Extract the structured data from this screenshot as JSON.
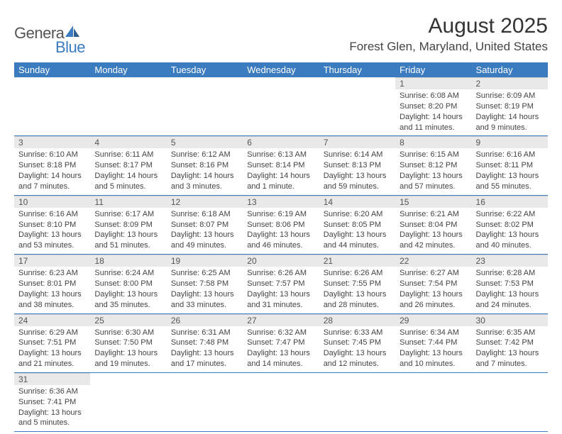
{
  "brand": {
    "part1": "Genera",
    "part2": "Blue"
  },
  "title": "August 2025",
  "location": "Forest Glen, Maryland, United States",
  "colors": {
    "header_bg": "#3b7bbf",
    "header_fg": "#ffffff",
    "daynum_bg": "#e9e9e9",
    "row_border": "#3b7bbf",
    "text": "#3a3a3a"
  },
  "fonts": {
    "title_pt": 30,
    "location_pt": 17,
    "dayhead_pt": 13,
    "daynum_pt": 12,
    "daytext_pt": 11
  },
  "day_names": [
    "Sunday",
    "Monday",
    "Tuesday",
    "Wednesday",
    "Thursday",
    "Friday",
    "Saturday"
  ],
  "weeks": [
    [
      null,
      null,
      null,
      null,
      null,
      {
        "n": "1",
        "sunrise": "6:08 AM",
        "sunset": "8:20 PM",
        "daylight": "14 hours and 11 minutes."
      },
      {
        "n": "2",
        "sunrise": "6:09 AM",
        "sunset": "8:19 PM",
        "daylight": "14 hours and 9 minutes."
      }
    ],
    [
      {
        "n": "3",
        "sunrise": "6:10 AM",
        "sunset": "8:18 PM",
        "daylight": "14 hours and 7 minutes."
      },
      {
        "n": "4",
        "sunrise": "6:11 AM",
        "sunset": "8:17 PM",
        "daylight": "14 hours and 5 minutes."
      },
      {
        "n": "5",
        "sunrise": "6:12 AM",
        "sunset": "8:16 PM",
        "daylight": "14 hours and 3 minutes."
      },
      {
        "n": "6",
        "sunrise": "6:13 AM",
        "sunset": "8:14 PM",
        "daylight": "14 hours and 1 minute."
      },
      {
        "n": "7",
        "sunrise": "6:14 AM",
        "sunset": "8:13 PM",
        "daylight": "13 hours and 59 minutes."
      },
      {
        "n": "8",
        "sunrise": "6:15 AM",
        "sunset": "8:12 PM",
        "daylight": "13 hours and 57 minutes."
      },
      {
        "n": "9",
        "sunrise": "6:16 AM",
        "sunset": "8:11 PM",
        "daylight": "13 hours and 55 minutes."
      }
    ],
    [
      {
        "n": "10",
        "sunrise": "6:16 AM",
        "sunset": "8:10 PM",
        "daylight": "13 hours and 53 minutes."
      },
      {
        "n": "11",
        "sunrise": "6:17 AM",
        "sunset": "8:09 PM",
        "daylight": "13 hours and 51 minutes."
      },
      {
        "n": "12",
        "sunrise": "6:18 AM",
        "sunset": "8:07 PM",
        "daylight": "13 hours and 49 minutes."
      },
      {
        "n": "13",
        "sunrise": "6:19 AM",
        "sunset": "8:06 PM",
        "daylight": "13 hours and 46 minutes."
      },
      {
        "n": "14",
        "sunrise": "6:20 AM",
        "sunset": "8:05 PM",
        "daylight": "13 hours and 44 minutes."
      },
      {
        "n": "15",
        "sunrise": "6:21 AM",
        "sunset": "8:04 PM",
        "daylight": "13 hours and 42 minutes."
      },
      {
        "n": "16",
        "sunrise": "6:22 AM",
        "sunset": "8:02 PM",
        "daylight": "13 hours and 40 minutes."
      }
    ],
    [
      {
        "n": "17",
        "sunrise": "6:23 AM",
        "sunset": "8:01 PM",
        "daylight": "13 hours and 38 minutes."
      },
      {
        "n": "18",
        "sunrise": "6:24 AM",
        "sunset": "8:00 PM",
        "daylight": "13 hours and 35 minutes."
      },
      {
        "n": "19",
        "sunrise": "6:25 AM",
        "sunset": "7:58 PM",
        "daylight": "13 hours and 33 minutes."
      },
      {
        "n": "20",
        "sunrise": "6:26 AM",
        "sunset": "7:57 PM",
        "daylight": "13 hours and 31 minutes."
      },
      {
        "n": "21",
        "sunrise": "6:26 AM",
        "sunset": "7:55 PM",
        "daylight": "13 hours and 28 minutes."
      },
      {
        "n": "22",
        "sunrise": "6:27 AM",
        "sunset": "7:54 PM",
        "daylight": "13 hours and 26 minutes."
      },
      {
        "n": "23",
        "sunrise": "6:28 AM",
        "sunset": "7:53 PM",
        "daylight": "13 hours and 24 minutes."
      }
    ],
    [
      {
        "n": "24",
        "sunrise": "6:29 AM",
        "sunset": "7:51 PM",
        "daylight": "13 hours and 21 minutes."
      },
      {
        "n": "25",
        "sunrise": "6:30 AM",
        "sunset": "7:50 PM",
        "daylight": "13 hours and 19 minutes."
      },
      {
        "n": "26",
        "sunrise": "6:31 AM",
        "sunset": "7:48 PM",
        "daylight": "13 hours and 17 minutes."
      },
      {
        "n": "27",
        "sunrise": "6:32 AM",
        "sunset": "7:47 PM",
        "daylight": "13 hours and 14 minutes."
      },
      {
        "n": "28",
        "sunrise": "6:33 AM",
        "sunset": "7:45 PM",
        "daylight": "13 hours and 12 minutes."
      },
      {
        "n": "29",
        "sunrise": "6:34 AM",
        "sunset": "7:44 PM",
        "daylight": "13 hours and 10 minutes."
      },
      {
        "n": "30",
        "sunrise": "6:35 AM",
        "sunset": "7:42 PM",
        "daylight": "13 hours and 7 minutes."
      }
    ],
    [
      {
        "n": "31",
        "sunrise": "6:36 AM",
        "sunset": "7:41 PM",
        "daylight": "13 hours and 5 minutes."
      },
      null,
      null,
      null,
      null,
      null,
      null
    ]
  ]
}
